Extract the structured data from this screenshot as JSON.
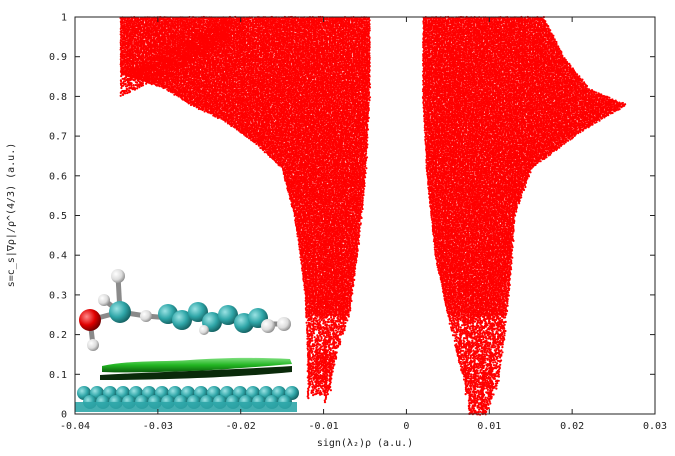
{
  "chart_data": {
    "type": "scatter",
    "xlabel": "sign(λ₂)ρ (a.u.)",
    "ylabel": "s=c_s|∇ρ|/ρ^(4/3) (a.u.)",
    "xlim": [
      -0.04,
      0.03
    ],
    "ylim": [
      0,
      1
    ],
    "x_ticks": [
      "-0.04",
      "-0.03",
      "-0.02",
      "-0.01",
      "0",
      "0.01",
      "0.02",
      "0.03"
    ],
    "y_ticks": [
      "0",
      "0.1",
      "0.2",
      "0.3",
      "0.4",
      "0.5",
      "0.6",
      "0.7",
      "0.8",
      "0.9",
      "1"
    ],
    "grid": false,
    "legend": "none",
    "point_color": "#ff0000",
    "series": [
      {
        "region": "negative spike",
        "envelope_left": [
          [
            -0.0345,
            0.86
          ],
          [
            -0.029,
            0.82
          ],
          [
            -0.026,
            0.78
          ],
          [
            -0.022,
            0.74
          ],
          [
            -0.018,
            0.68
          ],
          [
            -0.015,
            0.62
          ],
          [
            -0.0135,
            0.5
          ],
          [
            -0.0128,
            0.4
          ],
          [
            -0.0122,
            0.3
          ],
          [
            -0.012,
            0.2
          ],
          [
            -0.0118,
            0.1
          ],
          [
            -0.0115,
            0.06
          ]
        ],
        "envelope_right": [
          [
            -0.0045,
            1.0
          ],
          [
            -0.0045,
            0.8
          ],
          [
            -0.005,
            0.6
          ],
          [
            -0.006,
            0.4
          ],
          [
            -0.007,
            0.25
          ],
          [
            -0.0085,
            0.15
          ],
          [
            -0.0095,
            0.05
          ]
        ],
        "top_edge": [
          [
            -0.0345,
            0.86
          ],
          [
            -0.026,
            0.93
          ],
          [
            -0.0215,
            1.0
          ],
          [
            -0.0045,
            1.0
          ]
        ]
      },
      {
        "region": "positive spike",
        "envelope_left": [
          [
            0.002,
            1.0
          ],
          [
            0.002,
            0.8
          ],
          [
            0.0025,
            0.6
          ],
          [
            0.0035,
            0.4
          ],
          [
            0.005,
            0.25
          ],
          [
            0.0065,
            0.12
          ],
          [
            0.0075,
            0.05
          ]
        ],
        "envelope_right": [
          [
            0.0165,
            1.0
          ],
          [
            0.019,
            0.9
          ],
          [
            0.022,
            0.82
          ],
          [
            0.0265,
            0.78
          ],
          [
            0.0215,
            0.72
          ],
          [
            0.015,
            0.62
          ],
          [
            0.013,
            0.5
          ],
          [
            0.0125,
            0.35
          ],
          [
            0.0118,
            0.2
          ],
          [
            0.011,
            0.08
          ],
          [
            0.0095,
            0.0
          ]
        ],
        "top_edge": [
          [
            0.002,
            1.0
          ],
          [
            0.0165,
            1.0
          ]
        ]
      }
    ]
  },
  "inset": {
    "description_icon": "molecule-on-graphene-icon",
    "colors": {
      "oxygen": "#e00000",
      "carbon": "#2fa6a8",
      "hydrogen": "#e8e8e8",
      "isosurface": "#22b522"
    }
  }
}
